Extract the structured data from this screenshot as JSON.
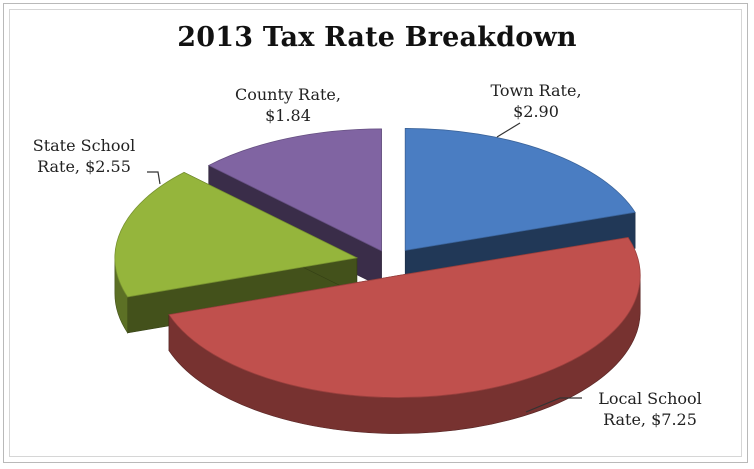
{
  "chart_data": {
    "type": "pie",
    "title": "2013 Tax Rate Breakdown",
    "categories": [
      "Town Rate",
      "Local School Rate",
      "State School Rate",
      "County Rate"
    ],
    "values": [
      2.9,
      7.25,
      2.55,
      1.84
    ],
    "value_labels": [
      "$2.90",
      "$7.25",
      "$2.55",
      "$1.84"
    ],
    "colors": {
      "Town Rate": "#4a7dc2",
      "Local School Rate": "#c0504d",
      "State School Rate": "#95b53c",
      "County Rate": "#8064a2"
    },
    "style": "3d-exploded",
    "legend": "none",
    "data_labels": [
      {
        "line1": "Town Rate,",
        "line2": "$2.90"
      },
      {
        "line1": "Local School",
        "line2": "Rate, $7.25"
      },
      {
        "line1": "State School",
        "line2": "Rate, $2.55"
      },
      {
        "line1": "County Rate,",
        "line2": "$1.84"
      }
    ]
  }
}
